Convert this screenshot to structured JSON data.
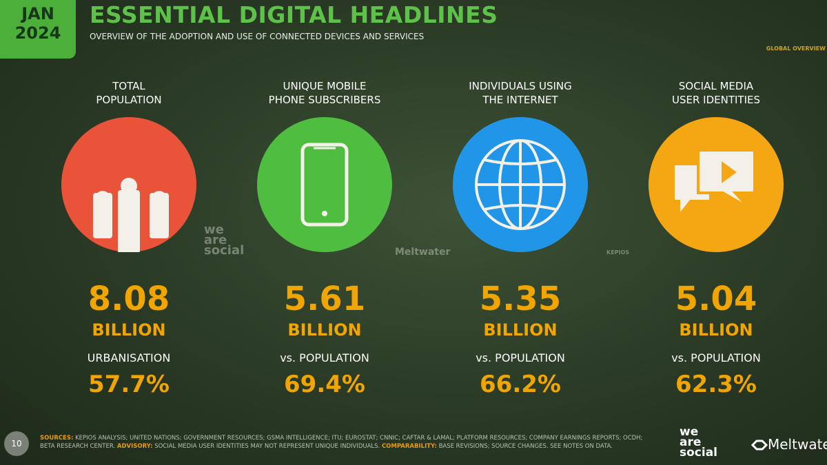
{
  "header": {
    "date_month": "JAN",
    "date_year": "2024",
    "title": "ESSENTIAL DIGITAL HEADLINES",
    "subtitle": "OVERVIEW OF THE ADOPTION AND USE OF CONNECTED DEVICES AND SERVICES",
    "section": "GLOBAL OVERVIEW"
  },
  "cards": [
    {
      "label": [
        "TOTAL",
        "POPULATION"
      ],
      "value": "8.08",
      "unit": "BILLION",
      "sublabel": "URBANISATION",
      "share": "57.7%"
    },
    {
      "label": [
        "UNIQUE MOBILE",
        "PHONE SUBSCRIBERS"
      ],
      "value": "5.61",
      "unit": "BILLION",
      "sublabel": "vs. POPULATION",
      "share": "69.4%"
    },
    {
      "label": [
        "INDIVIDUALS USING",
        "THE INTERNET"
      ],
      "value": "5.35",
      "unit": "BILLION",
      "sublabel": "vs. POPULATION",
      "share": "66.2%"
    },
    {
      "label": [
        "SOCIAL MEDIA",
        "USER IDENTITIES"
      ],
      "value": "5.04",
      "unit": "BILLION",
      "sublabel": "vs. POPULATION",
      "share": "62.3%"
    }
  ],
  "watermarks": {
    "we_are_social": [
      "we",
      "are",
      "social"
    ],
    "meltwater": "Meltwater",
    "kepios": "KEPIOS"
  },
  "footer": {
    "page": "10",
    "notes": [
      {
        "key": "SOURCES:",
        "text": "KEPIOS ANALYSIS; UNITED NATIONS; GOVERNMENT RESOURCES; GSMA INTELLIGENCE; ITU; EUROSTAT; CNNIC; CAFTAR & LAMAL; PLATFORM RESOURCES; COMPANY EARNINGS REPORTS; OCDH; BETA RESEARCH CENTER."
      },
      {
        "key": "ADVISORY:",
        "text": "SOCIAL MEDIA USER IDENTITIES MAY NOT REPRESENT UNIQUE INDIVIDUALS."
      },
      {
        "key": "COMPARABILITY:",
        "text": "BASE REVISIONS; SOURCE CHANGES. SEE NOTES ON DATA."
      }
    ],
    "logo_left": [
      "we",
      "are",
      "social"
    ],
    "logo_right": "Meltwater"
  }
}
